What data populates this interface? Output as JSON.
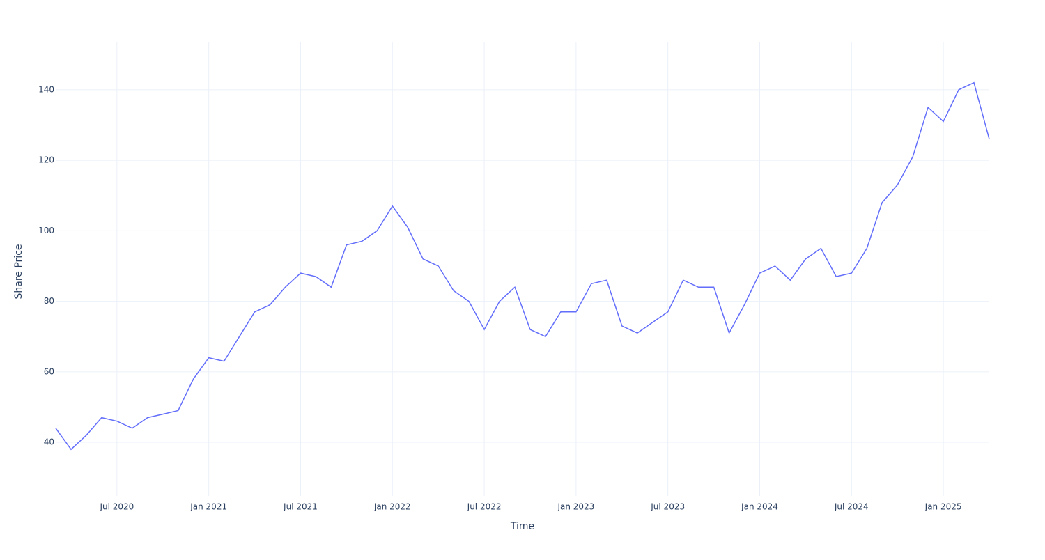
{
  "chart_data": {
    "type": "line",
    "x_title": "Time",
    "y_title": "Share Price",
    "x": [
      "2020-03",
      "2020-04",
      "2020-05",
      "2020-06",
      "2020-07",
      "2020-08",
      "2020-09",
      "2020-10",
      "2020-11",
      "2020-12",
      "2021-01",
      "2021-02",
      "2021-03",
      "2021-04",
      "2021-05",
      "2021-06",
      "2021-07",
      "2021-08",
      "2021-09",
      "2021-10",
      "2021-11",
      "2021-12",
      "2022-01",
      "2022-02",
      "2022-03",
      "2022-04",
      "2022-05",
      "2022-06",
      "2022-07",
      "2022-08",
      "2022-09",
      "2022-10",
      "2022-11",
      "2022-12",
      "2023-01",
      "2023-02",
      "2023-03",
      "2023-04",
      "2023-05",
      "2023-06",
      "2023-07",
      "2023-08",
      "2023-09",
      "2023-10",
      "2023-11",
      "2023-12",
      "2024-01",
      "2024-02",
      "2024-03",
      "2024-04",
      "2024-05",
      "2024-06",
      "2024-07",
      "2024-08",
      "2024-09",
      "2024-10",
      "2024-11",
      "2024-12",
      "2025-01",
      "2025-02",
      "2025-03",
      "2025-04"
    ],
    "series": [
      {
        "name": "Share Price",
        "color": "#636efa",
        "values": [
          44,
          38,
          42,
          47,
          46,
          44,
          47,
          48,
          49,
          58,
          64,
          63,
          70,
          77,
          79,
          84,
          88,
          87,
          84,
          96,
          97,
          100,
          107,
          101,
          92,
          90,
          83,
          80,
          72,
          80,
          84,
          72,
          70,
          77,
          77,
          85,
          86,
          73,
          71,
          74,
          77,
          86,
          84,
          84,
          71,
          79,
          88,
          90,
          86,
          92,
          95,
          87,
          88,
          95,
          108,
          113,
          121,
          135,
          131,
          140,
          142,
          126
        ]
      }
    ],
    "xlim": [
      "2020-03",
      "2025-04"
    ],
    "xticks": [
      {
        "value": "2020-07",
        "label": "Jul 2020"
      },
      {
        "value": "2021-01",
        "label": "Jan 2021"
      },
      {
        "value": "2021-07",
        "label": "Jul 2021"
      },
      {
        "value": "2022-01",
        "label": "Jan 2022"
      },
      {
        "value": "2022-07",
        "label": "Jul 2022"
      },
      {
        "value": "2023-01",
        "label": "Jan 2023"
      },
      {
        "value": "2023-07",
        "label": "Jul 2023"
      },
      {
        "value": "2024-01",
        "label": "Jan 2024"
      },
      {
        "value": "2024-07",
        "label": "Jul 2024"
      },
      {
        "value": "2025-01",
        "label": "Jan 2025"
      }
    ],
    "ylim": [
      24.8,
      153.6
    ],
    "yticks": [
      40,
      60,
      80,
      100,
      120,
      140
    ],
    "grid": true
  }
}
